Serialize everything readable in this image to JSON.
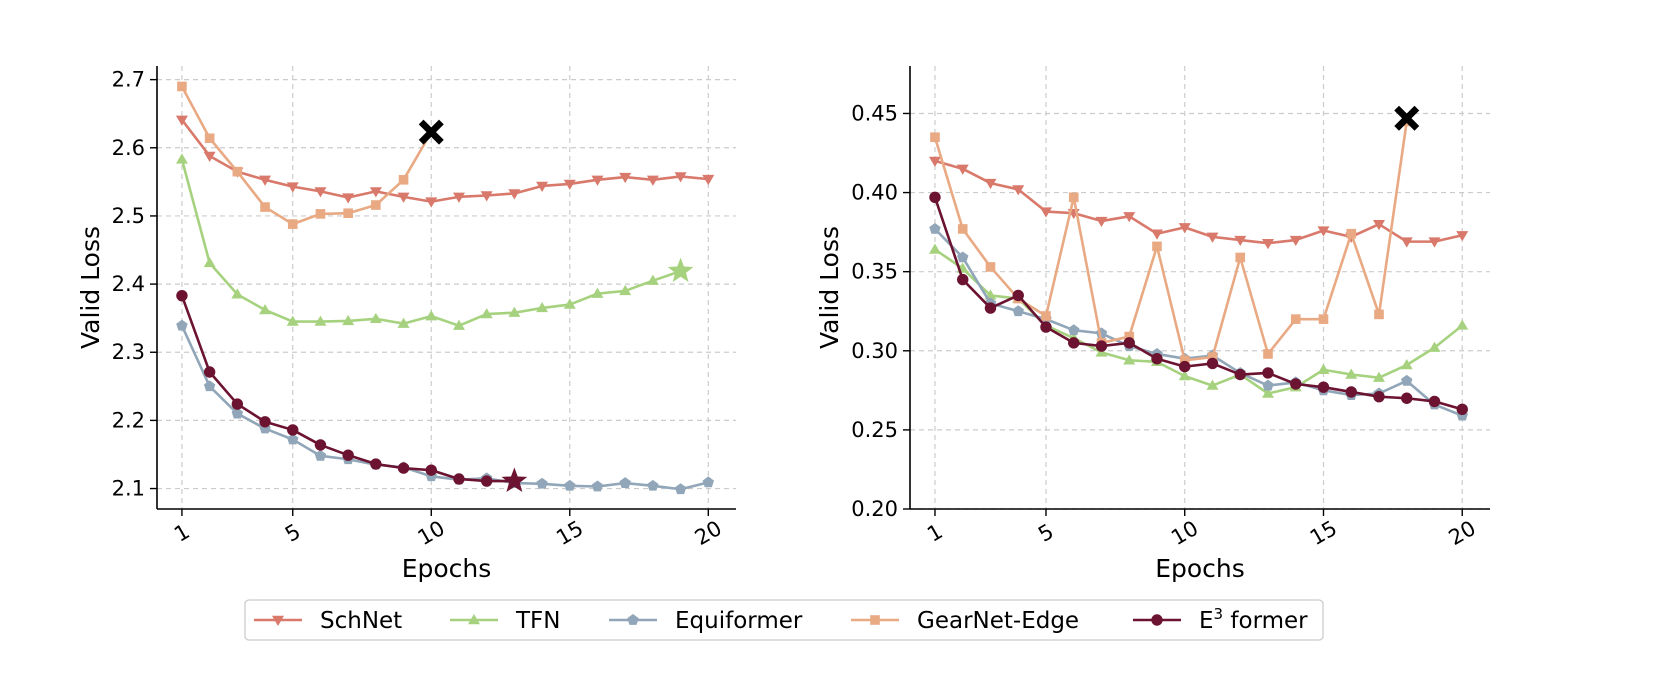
{
  "chart_data": [
    {
      "type": "line",
      "xlabel": "Epochs",
      "ylabel": "Valid Loss",
      "xlim": [
        0.1,
        21.0
      ],
      "ylim": [
        2.07,
        2.72
      ],
      "xticks": [
        1,
        5,
        10,
        15,
        20
      ],
      "yticks": [
        2.1,
        2.2,
        2.3,
        2.4,
        2.5,
        2.6,
        2.7
      ],
      "ytick_labels": [
        "2.1",
        "2.2",
        "2.3",
        "2.4",
        "2.5",
        "2.6",
        "2.7"
      ],
      "grid": true,
      "series": [
        {
          "name": "SchNet",
          "x": [
            1,
            2,
            3,
            4,
            5,
            6,
            7,
            8,
            9,
            10,
            11,
            12,
            13,
            14,
            15,
            16,
            17,
            18,
            19,
            20
          ],
          "values": [
            2.641,
            2.588,
            2.565,
            2.553,
            2.543,
            2.536,
            2.527,
            2.536,
            2.528,
            2.521,
            2.528,
            2.53,
            2.533,
            2.544,
            2.547,
            2.553,
            2.557,
            2.553,
            2.558,
            2.554
          ]
        },
        {
          "name": "TFN",
          "x": [
            1,
            2,
            3,
            4,
            5,
            6,
            7,
            8,
            9,
            10,
            11,
            12,
            13,
            14,
            15,
            16,
            17,
            18,
            19
          ],
          "values": [
            2.583,
            2.431,
            2.385,
            2.362,
            2.345,
            2.345,
            2.346,
            2.349,
            2.342,
            2.353,
            2.339,
            2.356,
            2.358,
            2.365,
            2.37,
            2.386,
            2.39,
            2.405,
            2.419
          ]
        },
        {
          "name": "Equiformer",
          "x": [
            1,
            2,
            3,
            4,
            5,
            6,
            7,
            8,
            9,
            10,
            11,
            12,
            13,
            14,
            15,
            16,
            17,
            18,
            19,
            20
          ],
          "values": [
            2.339,
            2.25,
            2.21,
            2.188,
            2.172,
            2.148,
            2.143,
            2.135,
            2.131,
            2.118,
            2.113,
            2.115,
            2.108,
            2.107,
            2.104,
            2.103,
            2.108,
            2.104,
            2.099,
            2.109
          ]
        },
        {
          "name": "GearNet-Edge",
          "x": [
            1,
            2,
            3,
            4,
            5,
            6,
            7,
            8,
            9,
            10
          ],
          "values": [
            2.69,
            2.614,
            2.565,
            2.513,
            2.488,
            2.503,
            2.504,
            2.516,
            2.553,
            2.623
          ]
        },
        {
          "name": "E³ former",
          "x": [
            1,
            2,
            3,
            4,
            5,
            6,
            7,
            8,
            9,
            10,
            11,
            12,
            13
          ],
          "values": [
            2.383,
            2.271,
            2.224,
            2.198,
            2.186,
            2.164,
            2.149,
            2.136,
            2.13,
            2.127,
            2.114,
            2.111,
            2.111
          ]
        }
      ],
      "annotations": [
        {
          "kind": "cross",
          "x": 10,
          "y": 2.623
        },
        {
          "kind": "star",
          "x": 19,
          "y": 2.419,
          "series": "TFN"
        },
        {
          "kind": "star",
          "x": 13,
          "y": 2.111,
          "series": "E³ former"
        }
      ]
    },
    {
      "type": "line",
      "xlabel": "Epochs",
      "ylabel": "Valid Loss",
      "xlim": [
        0.1,
        21.0
      ],
      "ylim": [
        0.2,
        0.48
      ],
      "xticks": [
        1,
        5,
        10,
        15,
        20
      ],
      "yticks": [
        0.2,
        0.25,
        0.3,
        0.35,
        0.4,
        0.45
      ],
      "ytick_labels": [
        "0.20",
        "0.25",
        "0.30",
        "0.35",
        "0.40",
        "0.45"
      ],
      "grid": true,
      "series": [
        {
          "name": "SchNet",
          "x": [
            1,
            2,
            3,
            4,
            5,
            6,
            7,
            8,
            9,
            10,
            11,
            12,
            13,
            14,
            15,
            16,
            17,
            18,
            19,
            20
          ],
          "values": [
            0.42,
            0.415,
            0.406,
            0.402,
            0.388,
            0.387,
            0.382,
            0.385,
            0.374,
            0.378,
            0.372,
            0.37,
            0.368,
            0.37,
            0.376,
            0.372,
            0.38,
            0.369,
            0.369,
            0.373
          ]
        },
        {
          "name": "TFN",
          "x": [
            1,
            2,
            3,
            4,
            5,
            6,
            7,
            8,
            9,
            10,
            11,
            12,
            13,
            14,
            15,
            16,
            17,
            18,
            19,
            20
          ],
          "values": [
            0.364,
            0.352,
            0.335,
            0.333,
            0.316,
            0.308,
            0.299,
            0.294,
            0.293,
            0.284,
            0.278,
            0.285,
            0.273,
            0.277,
            0.288,
            0.285,
            0.283,
            0.291,
            0.302,
            0.316
          ]
        },
        {
          "name": "Equiformer",
          "x": [
            1,
            2,
            3,
            4,
            5,
            6,
            7,
            8,
            9,
            10,
            11,
            12,
            13,
            14,
            15,
            16,
            17,
            18,
            19,
            20
          ],
          "values": [
            0.377,
            0.359,
            0.33,
            0.325,
            0.32,
            0.313,
            0.311,
            0.303,
            0.298,
            0.295,
            0.297,
            0.286,
            0.278,
            0.28,
            0.275,
            0.272,
            0.273,
            0.281,
            0.266,
            0.259
          ]
        },
        {
          "name": "GearNet-Edge",
          "x": [
            1,
            2,
            3,
            4,
            5,
            6,
            7,
            8,
            9,
            10,
            11,
            12,
            13,
            14,
            15,
            16,
            17,
            18
          ],
          "values": [
            0.435,
            0.377,
            0.353,
            0.333,
            0.322,
            0.397,
            0.305,
            0.309,
            0.366,
            0.294,
            0.296,
            0.359,
            0.298,
            0.32,
            0.32,
            0.374,
            0.323,
            0.445
          ]
        },
        {
          "name": "E³ former",
          "x": [
            1,
            2,
            3,
            4,
            5,
            6,
            7,
            8,
            9,
            10,
            11,
            12,
            13,
            14,
            15,
            16,
            17,
            18,
            19,
            20
          ],
          "values": [
            0.397,
            0.345,
            0.327,
            0.335,
            0.315,
            0.305,
            0.303,
            0.305,
            0.295,
            0.29,
            0.292,
            0.285,
            0.286,
            0.279,
            0.277,
            0.274,
            0.271,
            0.27,
            0.268,
            0.263
          ]
        }
      ],
      "annotations": [
        {
          "kind": "cross",
          "x": 18,
          "y": 0.447
        }
      ]
    }
  ],
  "legend": {
    "placement": "bottom-center",
    "entries": [
      {
        "name": "SchNet",
        "label": "SchNet",
        "marker": "triangle-down"
      },
      {
        "name": "TFN",
        "label": "TFN",
        "marker": "triangle-up"
      },
      {
        "name": "Equiformer",
        "label": "Equiformer",
        "marker": "pentagon"
      },
      {
        "name": "GearNet-Edge",
        "label": "GearNet-Edge",
        "marker": "square"
      },
      {
        "name": "E³ former",
        "label_base": "E",
        "label_sup": "3",
        "label_rest": " former",
        "marker": "circle"
      }
    ]
  },
  "colors": {
    "SchNet": "#D9796B",
    "TFN": "#A6D27F",
    "Equiformer": "#91A6B8",
    "GearNet-Edge": "#E8A983",
    "E³ former": "#6B1330",
    "grid": "#cccccc",
    "axis": "#000000",
    "cross": "#000000"
  }
}
